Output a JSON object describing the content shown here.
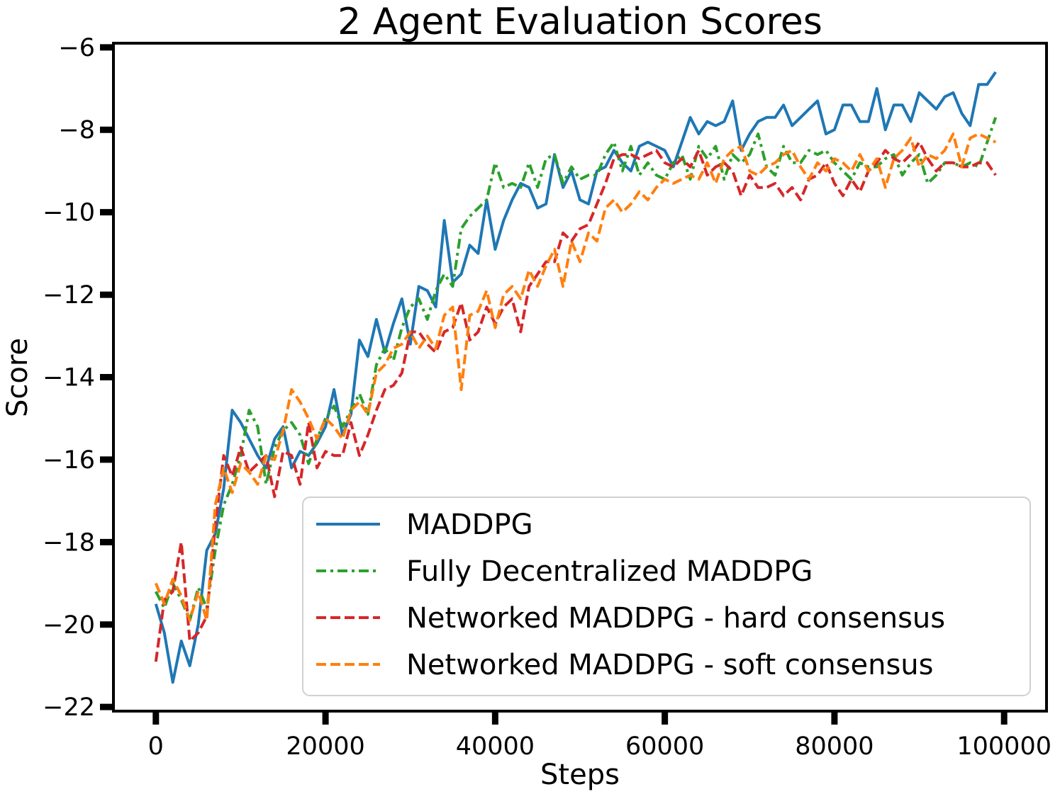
{
  "chart_data": {
    "type": "line",
    "title": "2 Agent Evaluation Scores",
    "xlabel": "Steps",
    "ylabel": "Score",
    "xlim": [
      -5000,
      105000
    ],
    "ylim": [
      -22.1,
      -5.9
    ],
    "xticks": [
      0,
      20000,
      40000,
      60000,
      80000,
      100000
    ],
    "yticks": [
      -6,
      -8,
      -10,
      -12,
      -14,
      -16,
      -18,
      -20,
      -22
    ],
    "xtick_labels": [
      "0",
      "20000",
      "40000",
      "60000",
      "80000",
      "100000"
    ],
    "ytick_labels": [
      "−6",
      "−8",
      "−10",
      "−12",
      "−14",
      "−16",
      "−18",
      "−20",
      "−22"
    ],
    "grid": false,
    "legend_position": "lower-right",
    "x_start": 0,
    "x_step": 1000,
    "series": [
      {
        "name": "MADDPG",
        "color": "#1f77b4",
        "dash": "solid",
        "values": [
          -19.5,
          -20.2,
          -21.4,
          -20.4,
          -21.0,
          -20.0,
          -18.2,
          -17.8,
          -16.7,
          -14.8,
          -15.1,
          -15.5,
          -15.9,
          -16.2,
          -15.5,
          -15.2,
          -16.2,
          -15.8,
          -15.9,
          -15.6,
          -15.2,
          -14.3,
          -15.4,
          -14.9,
          -13.1,
          -13.5,
          -12.6,
          -13.4,
          -12.7,
          -12.1,
          -13.2,
          -11.8,
          -11.9,
          -12.3,
          -10.2,
          -11.7,
          -11.5,
          -10.8,
          -11.0,
          -9.7,
          -10.9,
          -10.2,
          -9.7,
          -9.3,
          -9.4,
          -9.9,
          -9.8,
          -8.6,
          -9.4,
          -9.0,
          -9.7,
          -9.8,
          -9.0,
          -8.9,
          -8.5,
          -8.8,
          -9.0,
          -8.4,
          -8.3,
          -8.4,
          -8.5,
          -8.9,
          -8.3,
          -7.7,
          -8.1,
          -7.8,
          -7.9,
          -7.8,
          -7.3,
          -8.5,
          -8.1,
          -7.8,
          -7.7,
          -7.7,
          -7.4,
          -7.9,
          -7.7,
          -7.5,
          -7.3,
          -8.1,
          -8.0,
          -7.4,
          -7.4,
          -7.8,
          -7.8,
          -7.0,
          -8.0,
          -7.4,
          -7.4,
          -7.8,
          -7.1,
          -7.3,
          -7.5,
          -7.2,
          -7.1,
          -7.6,
          -7.9,
          -6.9,
          -6.9,
          -6.6
        ]
      },
      {
        "name": "Fully Decentralized MADDPG",
        "color": "#2ca02c",
        "dash": "dashdot",
        "values": [
          -19.2,
          -19.6,
          -19.0,
          -19.4,
          -19.9,
          -19.1,
          -19.6,
          -18.2,
          -17.1,
          -16.6,
          -15.9,
          -14.8,
          -15.2,
          -16.6,
          -15.7,
          -15.3,
          -15.1,
          -15.4,
          -16.1,
          -15.5,
          -15.0,
          -14.7,
          -15.2,
          -14.8,
          -14.4,
          -14.9,
          -13.7,
          -13.3,
          -13.6,
          -12.8,
          -12.3,
          -12.1,
          -12.6,
          -11.9,
          -11.5,
          -11.8,
          -10.4,
          -10.1,
          -9.9,
          -9.7,
          -8.8,
          -9.4,
          -9.3,
          -9.4,
          -8.8,
          -9.4,
          -8.7,
          -8.6,
          -9.3,
          -8.9,
          -9.2,
          -9.1,
          -9.1,
          -8.6,
          -8.3,
          -9.0,
          -8.4,
          -9.1,
          -8.8,
          -9.1,
          -9.2,
          -8.8,
          -8.6,
          -9.2,
          -8.4,
          -8.7,
          -8.4,
          -9.2,
          -8.6,
          -8.8,
          -8.6,
          -8.1,
          -8.9,
          -9.1,
          -8.4,
          -8.8,
          -8.8,
          -8.5,
          -8.6,
          -8.5,
          -8.8,
          -9.0,
          -9.2,
          -8.8,
          -8.9,
          -8.9,
          -8.7,
          -8.6,
          -9.1,
          -8.8,
          -8.6,
          -9.3,
          -9.1,
          -8.8,
          -8.8,
          -8.9,
          -8.8,
          -8.9,
          -8.3,
          -7.7
        ]
      },
      {
        "name": "Networked MADDPG - hard consensus",
        "color": "#d62728",
        "dash": "dashed",
        "values": [
          -20.9,
          -19.4,
          -19.2,
          -18.0,
          -20.4,
          -20.2,
          -19.8,
          -17.6,
          -15.9,
          -16.4,
          -15.7,
          -16.3,
          -16.1,
          -15.9,
          -16.9,
          -15.8,
          -15.9,
          -16.6,
          -15.1,
          -16.2,
          -15.8,
          -15.9,
          -15.9,
          -15.1,
          -15.9,
          -15.4,
          -14.8,
          -14.3,
          -14.2,
          -13.9,
          -12.9,
          -12.9,
          -13.2,
          -13.4,
          -12.9,
          -12.8,
          -12.2,
          -13.1,
          -12.9,
          -12.3,
          -12.7,
          -12.3,
          -12.1,
          -12.9,
          -11.8,
          -11.5,
          -11.2,
          -11.2,
          -10.5,
          -10.7,
          -10.4,
          -10.3,
          -9.8,
          -9.3,
          -8.7,
          -8.6,
          -8.6,
          -8.7,
          -8.6,
          -8.5,
          -8.8,
          -8.9,
          -8.7,
          -8.9,
          -8.5,
          -9.1,
          -8.9,
          -8.8,
          -9.0,
          -9.6,
          -9.1,
          -9.4,
          -9.4,
          -9.3,
          -9.6,
          -9.4,
          -9.7,
          -9.2,
          -9.1,
          -8.8,
          -9.3,
          -9.6,
          -9.2,
          -9.5,
          -9.0,
          -8.8,
          -8.5,
          -8.7,
          -8.8,
          -8.6,
          -8.3,
          -8.7,
          -9.0,
          -8.8,
          -8.8,
          -8.9,
          -8.9,
          -8.8,
          -8.8,
          -9.1
        ]
      },
      {
        "name": "Networked MADDPG - soft consensus",
        "color": "#ff7f0e",
        "dash": "dashed",
        "values": [
          -19.0,
          -19.5,
          -18.9,
          -19.3,
          -19.9,
          -19.2,
          -19.9,
          -17.1,
          -16.2,
          -16.8,
          -16.1,
          -16.3,
          -16.6,
          -15.9,
          -16.0,
          -15.3,
          -14.3,
          -14.6,
          -15.0,
          -15.5,
          -15.0,
          -15.2,
          -15.5,
          -14.8,
          -14.6,
          -14.9,
          -13.9,
          -13.7,
          -13.3,
          -13.2,
          -12.9,
          -13.3,
          -13.0,
          -13.3,
          -12.5,
          -12.3,
          -14.3,
          -12.5,
          -12.4,
          -11.9,
          -12.8,
          -12.0,
          -11.8,
          -12.1,
          -11.4,
          -11.8,
          -11.3,
          -10.9,
          -11.8,
          -10.7,
          -11.2,
          -10.5,
          -10.7,
          -9.9,
          -9.7,
          -10.0,
          -9.8,
          -9.5,
          -9.7,
          -9.4,
          -9.2,
          -9.3,
          -9.2,
          -9.1,
          -9.2,
          -8.8,
          -9.3,
          -8.7,
          -8.5,
          -8.4,
          -9.0,
          -9.1,
          -8.9,
          -8.8,
          -8.6,
          -8.5,
          -8.9,
          -9.2,
          -8.8,
          -9.0,
          -8.7,
          -8.8,
          -9.0,
          -8.6,
          -9.0,
          -8.7,
          -9.4,
          -8.7,
          -8.5,
          -8.2,
          -8.9,
          -8.6,
          -8.7,
          -8.5,
          -8.1,
          -8.9,
          -8.2,
          -8.1,
          -8.2,
          -8.3
        ]
      }
    ]
  }
}
